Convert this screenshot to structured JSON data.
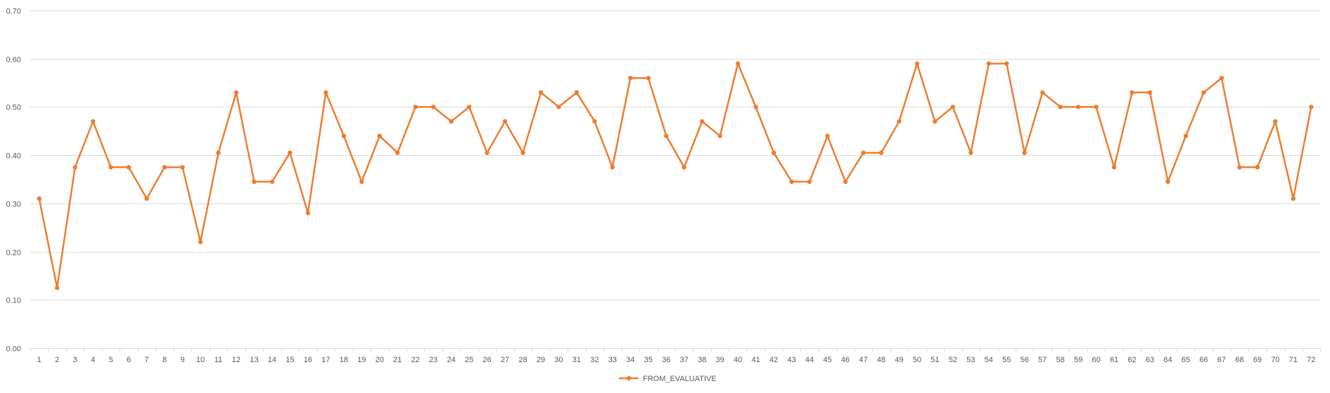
{
  "chart_data": {
    "type": "line",
    "title": "",
    "xlabel": "",
    "ylabel": "",
    "ylim": [
      0,
      0.7
    ],
    "y_ticks": [
      "0.00",
      "0.10",
      "0.20",
      "0.30",
      "0.40",
      "0.50",
      "0.60",
      "0.70"
    ],
    "grid": true,
    "legend_position": "bottom",
    "categories": [
      "1",
      "2",
      "3",
      "4",
      "5",
      "6",
      "7",
      "8",
      "9",
      "10",
      "11",
      "12",
      "13",
      "14",
      "15",
      "16",
      "17",
      "18",
      "19",
      "20",
      "21",
      "22",
      "23",
      "24",
      "25",
      "26",
      "27",
      "28",
      "29",
      "30",
      "31",
      "32",
      "33",
      "34",
      "35",
      "36",
      "37",
      "38",
      "39",
      "40",
      "41",
      "42",
      "43",
      "44",
      "45",
      "46",
      "47",
      "48",
      "49",
      "50",
      "51",
      "52",
      "53",
      "54",
      "55",
      "56",
      "57",
      "58",
      "59",
      "60",
      "61",
      "62",
      "63",
      "64",
      "65",
      "66",
      "67",
      "68",
      "69",
      "70",
      "71",
      "72"
    ],
    "series": [
      {
        "name": "FROM_EVALUATIVE",
        "color": "#ed7d31",
        "values": [
          0.31,
          0.125,
          0.375,
          0.47,
          0.375,
          0.375,
          0.31,
          0.375,
          0.375,
          0.22,
          0.405,
          0.53,
          0.345,
          0.345,
          0.405,
          0.28,
          0.53,
          0.44,
          0.345,
          0.44,
          0.405,
          0.5,
          0.5,
          0.47,
          0.5,
          0.405,
          0.47,
          0.405,
          0.53,
          0.5,
          0.53,
          0.47,
          0.375,
          0.56,
          0.56,
          0.44,
          0.375,
          0.47,
          0.44,
          0.59,
          0.5,
          0.405,
          0.345,
          0.345,
          0.44,
          0.345,
          0.405,
          0.405,
          0.47,
          0.59,
          0.47,
          0.5,
          0.405,
          0.59,
          0.59,
          0.405,
          0.53,
          0.5,
          0.5,
          0.5,
          0.375,
          0.53,
          0.53,
          0.345,
          0.44,
          0.53,
          0.56,
          0.375,
          0.375,
          0.47,
          0.31,
          0.5
        ]
      }
    ]
  }
}
